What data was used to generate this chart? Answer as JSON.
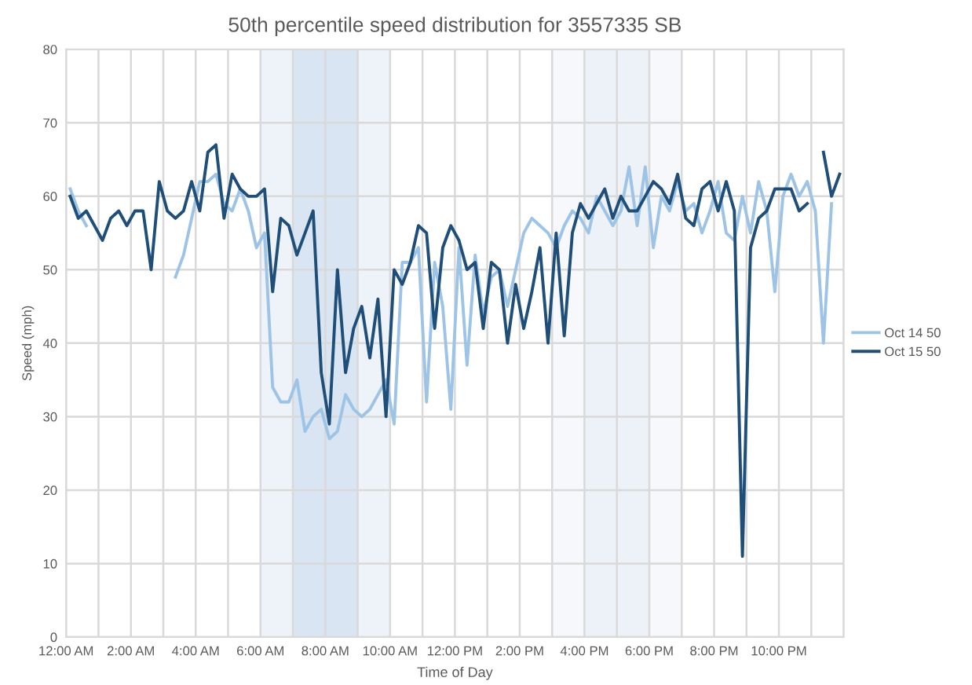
{
  "chart_data": {
    "type": "line",
    "title": "50th percentile speed distribution for 3557335 SB",
    "xlabel": "Time of Day",
    "ylabel": "Speed (mph)",
    "x": [
      0.125,
      0.375,
      0.625,
      0.875,
      1.125,
      1.375,
      1.625,
      1.875,
      2.125,
      2.375,
      2.625,
      2.875,
      3.125,
      3.375,
      3.625,
      3.875,
      4.125,
      4.375,
      4.625,
      4.875,
      5.125,
      5.375,
      5.625,
      5.875,
      6.125,
      6.375,
      6.625,
      6.875,
      7.125,
      7.375,
      7.625,
      7.875,
      8.125,
      8.375,
      8.625,
      8.875,
      9.125,
      9.375,
      9.625,
      9.875,
      10.125,
      10.375,
      10.625,
      10.875,
      11.125,
      11.375,
      11.625,
      11.875,
      12.125,
      12.375,
      12.625,
      12.875,
      13.125,
      13.375,
      13.625,
      13.875,
      14.125,
      14.375,
      14.625,
      14.875,
      15.125,
      15.375,
      15.625,
      15.875,
      16.125,
      16.375,
      16.625,
      16.875,
      17.125,
      17.375,
      17.625,
      17.875,
      18.125,
      18.375,
      18.625,
      18.875,
      19.125,
      19.375,
      19.625,
      19.875,
      20.125,
      20.375,
      20.625,
      20.875,
      21.125,
      21.375,
      21.625,
      21.875,
      22.125,
      22.375,
      22.625,
      22.875,
      23.125,
      23.375,
      23.625,
      23.875
    ],
    "series": [
      {
        "name": "Oct 14 50",
        "color": "#9dc3e6",
        "values": [
          61,
          58,
          56,
          null,
          null,
          null,
          null,
          null,
          null,
          null,
          null,
          null,
          null,
          49,
          52,
          57,
          62,
          62,
          63,
          59,
          58,
          61,
          58,
          53,
          55,
          34,
          32,
          32,
          35,
          28,
          30,
          31,
          27,
          28,
          33,
          31,
          30,
          31,
          33,
          35,
          29,
          51,
          51,
          53,
          32,
          51,
          45,
          31,
          53,
          37,
          52,
          44,
          49,
          50,
          45,
          50,
          55,
          57,
          56,
          55,
          53,
          56,
          58,
          57,
          55,
          60,
          58,
          56,
          58,
          64,
          56,
          64,
          53,
          60,
          58,
          62,
          58,
          59,
          55,
          58,
          62,
          55,
          54,
          60,
          55,
          62,
          58,
          47,
          60,
          63,
          60,
          62,
          58,
          40,
          59,
          null
        ]
      },
      {
        "name": "Oct 15 50",
        "color": "#1f4e79",
        "values": [
          60,
          57,
          58,
          56,
          54,
          57,
          58,
          56,
          58,
          58,
          50,
          62,
          58,
          57,
          58,
          62,
          58,
          66,
          67,
          57,
          63,
          61,
          60,
          60,
          61,
          47,
          57,
          56,
          52,
          55,
          58,
          36,
          29,
          50,
          36,
          42,
          45,
          38,
          46,
          30,
          50,
          48,
          51,
          56,
          55,
          42,
          53,
          56,
          54,
          50,
          51,
          42,
          51,
          50,
          40,
          48,
          42,
          47,
          53,
          40,
          55,
          41,
          55,
          59,
          57,
          59,
          61,
          57,
          60,
          58,
          58,
          60,
          62,
          61,
          59,
          63,
          57,
          56,
          61,
          62,
          58,
          62,
          58,
          11,
          53,
          57,
          58,
          61,
          61,
          61,
          58,
          59,
          null,
          66,
          60,
          63
        ]
      }
    ],
    "xlim": [
      0,
      24
    ],
    "xticks": [
      {
        "value": 0,
        "label": "12:00 AM"
      },
      {
        "value": 1,
        "label": null
      },
      {
        "value": 2,
        "label": "2:00 AM"
      },
      {
        "value": 3,
        "label": null
      },
      {
        "value": 4,
        "label": "4:00 AM"
      },
      {
        "value": 5,
        "label": null
      },
      {
        "value": 6,
        "label": "6:00 AM"
      },
      {
        "value": 7,
        "label": null
      },
      {
        "value": 8,
        "label": "8:00 AM"
      },
      {
        "value": 9,
        "label": null
      },
      {
        "value": 10,
        "label": "10:00 AM"
      },
      {
        "value": 11,
        "label": null
      },
      {
        "value": 12,
        "label": "12:00 PM"
      },
      {
        "value": 13,
        "label": null
      },
      {
        "value": 14,
        "label": "2:00 PM"
      },
      {
        "value": 15,
        "label": null
      },
      {
        "value": 16,
        "label": "4:00 PM"
      },
      {
        "value": 17,
        "label": null
      },
      {
        "value": 18,
        "label": "6:00 PM"
      },
      {
        "value": 19,
        "label": null
      },
      {
        "value": 20,
        "label": "8:00 PM"
      },
      {
        "value": 21,
        "label": null
      },
      {
        "value": 22,
        "label": "10:00 PM"
      },
      {
        "value": 23,
        "label": null
      },
      {
        "value": 24,
        "label": null
      }
    ],
    "ylim": [
      0,
      80
    ],
    "yticks": [
      0,
      10,
      20,
      30,
      40,
      50,
      60,
      70,
      80
    ],
    "bands": [
      {
        "axis": "x",
        "from": 6,
        "to": 10,
        "color": "#eef3fa"
      },
      {
        "axis": "x",
        "from": 7,
        "to": 9,
        "color": "#dae5f3"
      },
      {
        "axis": "x",
        "from": 15,
        "to": 19,
        "color": "#f6f8fc"
      },
      {
        "axis": "x",
        "from": 16,
        "to": 18,
        "color": "#edf2f9"
      }
    ],
    "grid": true,
    "legend": "right",
    "marker": "none",
    "line_style": "solid"
  }
}
